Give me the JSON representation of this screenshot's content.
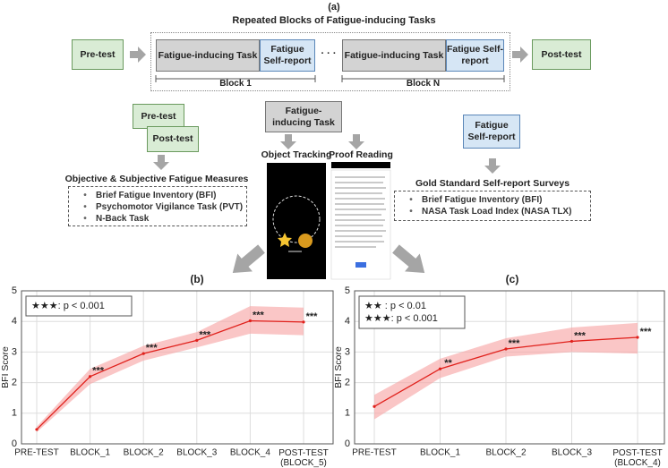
{
  "diagram": {
    "label": "(a)",
    "title": "Repeated Blocks of Fatigue-inducing Tasks",
    "pre_test": "Pre-test",
    "post_test": "Post-test",
    "blocks": [
      {
        "task": "Fatigue-inducing Task",
        "report": "Fatigue Self-report",
        "label": "Block 1"
      },
      {
        "task": "Fatigue-inducing Task",
        "report": "Fatigue Self-report",
        "label": "Block N"
      }
    ],
    "ellipsis": "· · ·",
    "objective": {
      "pre": "Pre-test",
      "post": "Post-test",
      "title": "Objective & Subjective Fatigue Measures",
      "items": [
        "Brief Fatigue Inventory (BFI)",
        "Psychomotor Vigilance Task (PVT)",
        "N-Back Task"
      ]
    },
    "task": {
      "title": "Fatigue-inducing Task",
      "left": "Object Tracking",
      "right": "Proof Reading"
    },
    "survey": {
      "box": "Fatigue Self-report",
      "title": "Gold Standard Self-report Surveys",
      "items": [
        "Brief Fatigue Inventory (BFI)",
        "NASA Task Load Index (NASA TLX)"
      ]
    }
  },
  "chart_data": [
    {
      "type": "line",
      "title": "(b)",
      "y_label": "BFI Score",
      "categories": [
        "PRE-TEST",
        "BLOCK_1",
        "BLOCK_2",
        "BLOCK_3",
        "BLOCK_4",
        "POST-TEST\n(BLOCK_5)"
      ],
      "values": [
        0.47,
        2.2,
        2.95,
        3.38,
        4.02,
        3.98
      ],
      "lower": [
        0.38,
        1.95,
        2.72,
        3.15,
        3.6,
        3.55
      ],
      "upper": [
        0.56,
        2.45,
        3.2,
        3.65,
        4.5,
        4.45
      ],
      "annotations": [
        null,
        "***",
        "***",
        "***",
        "***",
        "***"
      ],
      "legend": [
        "★★★: p < 0.001"
      ],
      "color": "#e0201b",
      "band_color": "#f7a8a8",
      "ylim": [
        0,
        5
      ],
      "yticks": [
        0,
        1,
        2,
        3,
        4,
        5
      ],
      "grid": true
    },
    {
      "type": "line",
      "title": "(c)",
      "y_label": "BFI Score",
      "categories": [
        "PRE-TEST",
        "BLOCK_1",
        "BLOCK_2",
        "BLOCK_3",
        "POST-TEST\n(BLOCK_4)"
      ],
      "values": [
        1.22,
        2.45,
        3.1,
        3.35,
        3.48
      ],
      "lower": [
        0.8,
        2.15,
        2.85,
        3.0,
        2.95
      ],
      "upper": [
        1.6,
        2.78,
        3.45,
        3.8,
        3.95
      ],
      "annotations": [
        null,
        "**",
        "***",
        "***",
        "***"
      ],
      "legend": [
        "★★  : p < 0.01",
        "★★★: p < 0.001"
      ],
      "color": "#e0201b",
      "band_color": "#f7a8a8",
      "ylim": [
        0,
        5
      ],
      "yticks": [
        0,
        1,
        2,
        3,
        4,
        5
      ],
      "grid": true
    }
  ]
}
